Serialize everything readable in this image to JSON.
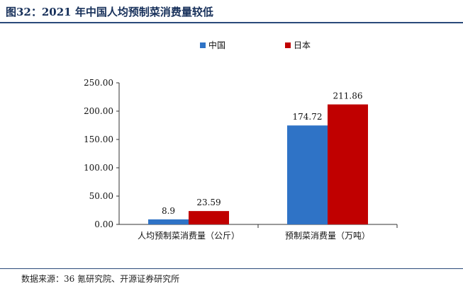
{
  "title": "图32：2021 年中国人均预制菜消费量较低",
  "source": "数据来源：36 氪研究院、开源证券研究所",
  "chart_data": {
    "type": "bar",
    "categories": [
      "人均预制菜消费量（公斤）",
      "预制菜消费量（万吨）"
    ],
    "series": [
      {
        "name": "中国",
        "color": "#2f73c6",
        "values": [
          8.9,
          174.72
        ],
        "labels": [
          "8.9",
          "174.72"
        ]
      },
      {
        "name": "日本",
        "color": "#c00000",
        "values": [
          23.59,
          211.86
        ],
        "labels": [
          "23.59",
          "211.86"
        ]
      }
    ],
    "ylim": [
      0,
      250
    ],
    "yticks": [
      "0.00",
      "50.00",
      "100.00",
      "150.00",
      "200.00",
      "250.00"
    ],
    "legend_position": "top-center",
    "grid": false
  }
}
